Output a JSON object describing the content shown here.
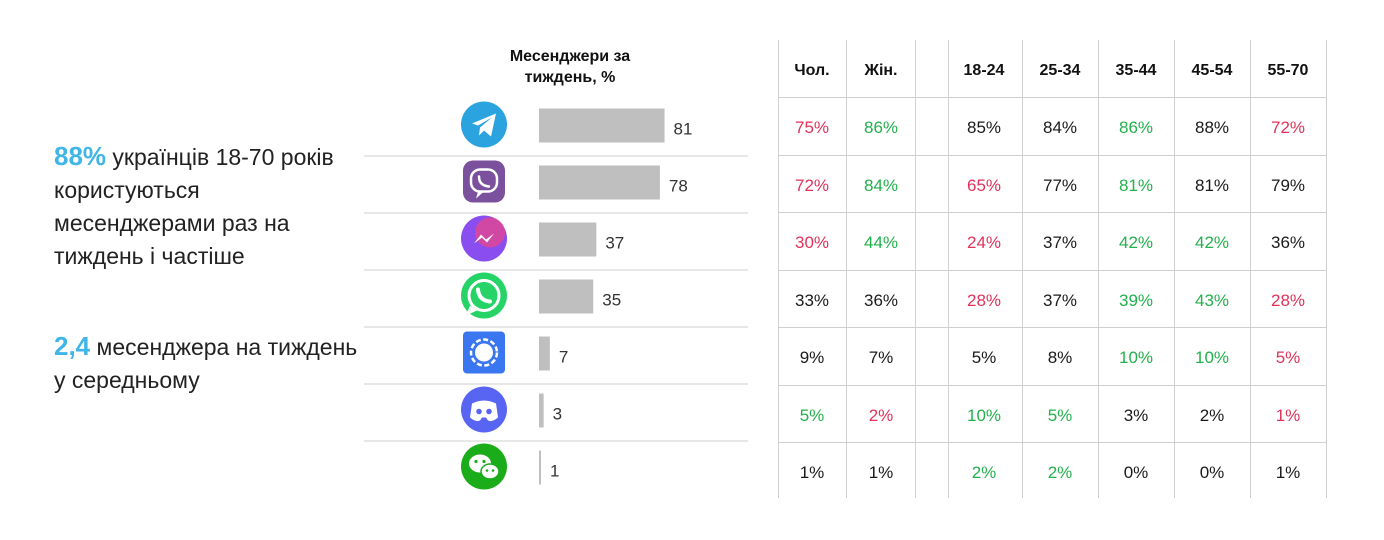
{
  "left_panel": {
    "stat1_value": "88%",
    "stat1_text": " українців 18-70 років користуються месенджерами раз на тиждень і частіше",
    "stat2_value": "2,4",
    "stat2_text": " месенджера на тиждень у середньому",
    "accent_color": "#3fb5e8"
  },
  "chart_data": {
    "type": "bar",
    "orientation": "horizontal",
    "title": "Месенджери за тиждень, %",
    "categories": [
      "telegram-icon",
      "viber-icon",
      "messenger-icon",
      "whatsapp-icon",
      "signal-icon",
      "discord-icon",
      "wechat-icon"
    ],
    "values": [
      81,
      78,
      37,
      35,
      7,
      3,
      1
    ],
    "labels": [
      "81",
      "78",
      "37",
      "35",
      "7",
      "3",
      "1"
    ],
    "bar_color": "#bfbfbf",
    "xlim": [
      0,
      100
    ]
  },
  "table": {
    "headers": [
      "Чол.",
      "Жін.",
      "18-24",
      "25-34",
      "35-44",
      "45-54",
      "55-70"
    ],
    "rows": [
      [
        [
          "75%",
          "red"
        ],
        [
          "86%",
          "green"
        ],
        [
          "85%",
          "black"
        ],
        [
          "84%",
          "black"
        ],
        [
          "86%",
          "green"
        ],
        [
          "88%",
          "black"
        ],
        [
          "72%",
          "red"
        ]
      ],
      [
        [
          "72%",
          "red"
        ],
        [
          "84%",
          "green"
        ],
        [
          "65%",
          "red"
        ],
        [
          "77%",
          "black"
        ],
        [
          "81%",
          "green"
        ],
        [
          "81%",
          "black"
        ],
        [
          "79%",
          "black"
        ]
      ],
      [
        [
          "30%",
          "red"
        ],
        [
          "44%",
          "green"
        ],
        [
          "24%",
          "red"
        ],
        [
          "37%",
          "black"
        ],
        [
          "42%",
          "green"
        ],
        [
          "42%",
          "green"
        ],
        [
          "36%",
          "black"
        ]
      ],
      [
        [
          "33%",
          "black"
        ],
        [
          "36%",
          "black"
        ],
        [
          "28%",
          "red"
        ],
        [
          "37%",
          "black"
        ],
        [
          "39%",
          "green"
        ],
        [
          "43%",
          "green"
        ],
        [
          "28%",
          "red"
        ]
      ],
      [
        [
          "9%",
          "black"
        ],
        [
          "7%",
          "black"
        ],
        [
          "5%",
          "black"
        ],
        [
          "8%",
          "black"
        ],
        [
          "10%",
          "green"
        ],
        [
          "10%",
          "green"
        ],
        [
          "5%",
          "red"
        ]
      ],
      [
        [
          "5%",
          "green"
        ],
        [
          "2%",
          "red"
        ],
        [
          "10%",
          "green"
        ],
        [
          "5%",
          "green"
        ],
        [
          "3%",
          "black"
        ],
        [
          "2%",
          "black"
        ],
        [
          "1%",
          "red"
        ]
      ],
      [
        [
          "1%",
          "black"
        ],
        [
          "1%",
          "black"
        ],
        [
          "2%",
          "green"
        ],
        [
          "2%",
          "green"
        ],
        [
          "0%",
          "black"
        ],
        [
          "0%",
          "black"
        ],
        [
          "1%",
          "black"
        ]
      ]
    ],
    "colors": {
      "red": "#e0325a",
      "green": "#22b14c",
      "black": "#1a1a1a"
    }
  }
}
